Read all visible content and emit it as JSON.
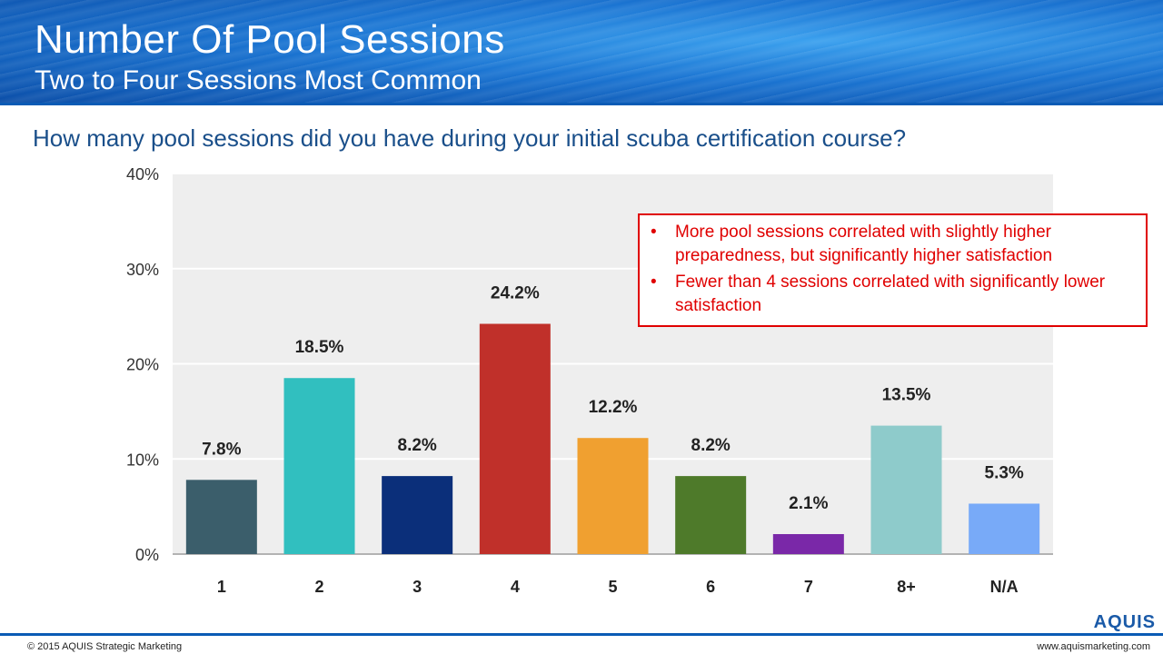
{
  "header": {
    "title": "Number Of Pool Sessions",
    "subtitle": "Two to Four Sessions Most Common"
  },
  "question": "How many pool sessions did you have during your initial scuba certification course?",
  "callout": {
    "items": [
      "More pool sessions correlated with slightly higher preparedness,  but significantly higher satisfaction",
      "Fewer than 4 sessions correlated with significantly lower satisfaction"
    ],
    "bullet": "•"
  },
  "footer": {
    "copyright": "© 2015 AQUIS Strategic Marketing",
    "website": "www.aquismarketing.com",
    "logo": "AQUIS"
  },
  "colors": {
    "header_blue": "#1a74d2",
    "callout_red": "#e00000",
    "plot_bg": "#eeeeee"
  },
  "chart_data": {
    "type": "bar",
    "categories": [
      "1",
      "2",
      "3",
      "4",
      "5",
      "6",
      "7",
      "8+",
      "N/A"
    ],
    "values": [
      7.8,
      18.5,
      8.2,
      24.2,
      12.2,
      8.2,
      2.1,
      13.5,
      5.3
    ],
    "value_labels": [
      "7.8%",
      "18.5%",
      "8.2%",
      "24.2%",
      "12.2%",
      "8.2%",
      "2.1%",
      "13.5%",
      "5.3%"
    ],
    "bar_colors": [
      "#3b5e6b",
      "#31bfbf",
      "#0b2f7a",
      "#c0302a",
      "#f0a030",
      "#4e7a2a",
      "#7a28a8",
      "#8ecbcb",
      "#78aaf8"
    ],
    "ylim": [
      0,
      40
    ],
    "yticks": [
      0,
      10,
      20,
      30,
      40
    ],
    "ytick_labels": [
      "0%",
      "10%",
      "20%",
      "30%",
      "40%"
    ],
    "grid": true,
    "legend": "none"
  }
}
